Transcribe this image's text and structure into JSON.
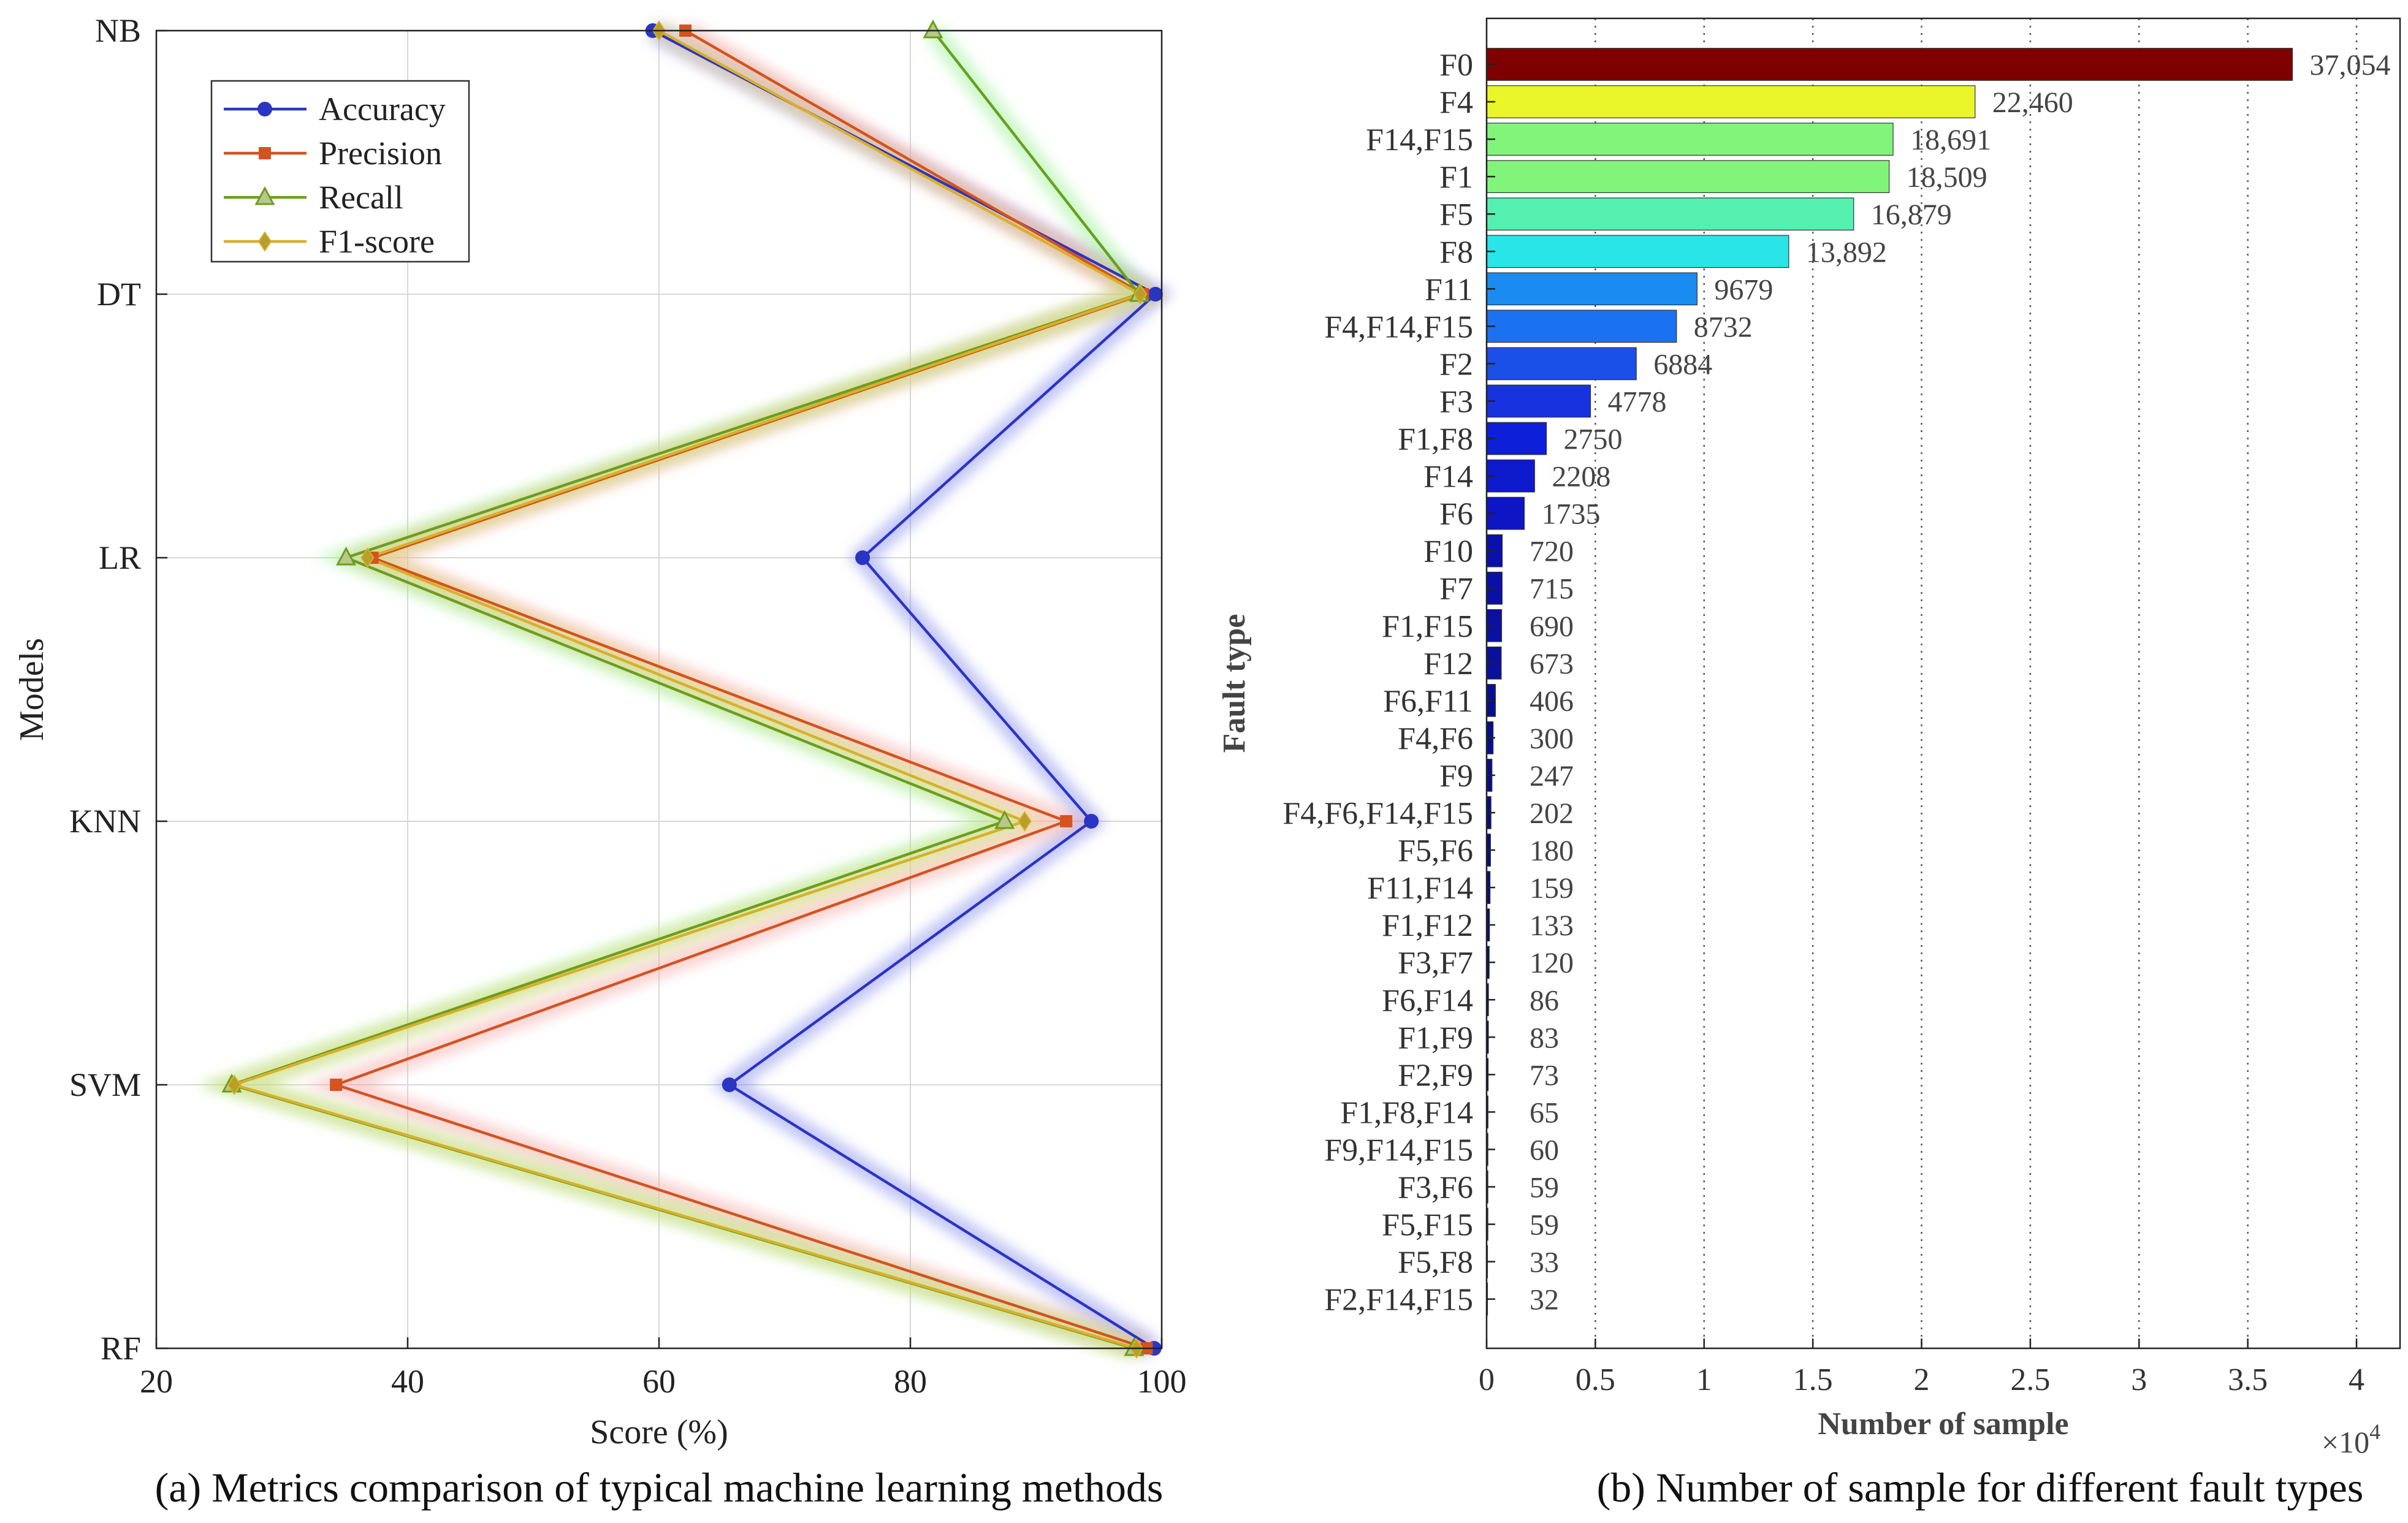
{
  "chart_data": [
    {
      "type": "line",
      "orientation": "horizontal",
      "title": "",
      "caption": "(a) Metrics comparison of typical machine learning methods",
      "xlabel": "Score (%)",
      "ylabel": "Models",
      "xlim": [
        20,
        100
      ],
      "xticks": [
        20,
        40,
        60,
        80,
        100
      ],
      "categories": [
        "NB",
        "DT",
        "LR",
        "KNN",
        "SVM",
        "RF"
      ],
      "grid": true,
      "legend_position": "top-left",
      "series": [
        {
          "name": "Accuracy",
          "color": "#2a35c4",
          "marker": "circle",
          "values": [
            59.5,
            99.5,
            76.2,
            94.4,
            65.6,
            99.4
          ]
        },
        {
          "name": "Precision",
          "color": "#d4531f",
          "marker": "square",
          "values": [
            62.1,
            98.5,
            37.2,
            92.4,
            34.3,
            98.8
          ]
        },
        {
          "name": "Recall",
          "color": "#6b9e1f",
          "marker": "triangle",
          "values": [
            81.8,
            98.2,
            35.1,
            87.5,
            26.0,
            97.8
          ]
        },
        {
          "name": "F1-score",
          "color": "#d8b02a",
          "marker": "diamond",
          "values": [
            60.0,
            98.3,
            36.8,
            89.1,
            26.2,
            98.0
          ]
        }
      ]
    },
    {
      "type": "bar",
      "orientation": "horizontal",
      "title": "",
      "caption": "(b) Number of sample for different fault types",
      "xlabel": "Number of sample",
      "ylabel": "Fault type",
      "xlim": [
        0,
        42000
      ],
      "xticks": [
        0,
        5000,
        10000,
        15000,
        20000,
        25000,
        30000,
        35000,
        40000
      ],
      "xtick_labels": [
        "0",
        "0.5",
        "1",
        "1.5",
        "2",
        "2.5",
        "3",
        "3.5",
        "4"
      ],
      "x_exponent_label": "×10",
      "x_exponent_power": "4",
      "grid": "vertical dotted",
      "categories": [
        "F0",
        "F4",
        "F14,F15",
        "F1",
        "F5",
        "F8",
        "F11",
        "F4,F14,F15",
        "F2",
        "F3",
        "F1,F8",
        "F14",
        "F6",
        "F10",
        "F7",
        "F1,F15",
        "F12",
        "F6,F11",
        "F4,F6",
        "F9",
        "F4,F6,F14,F15",
        "F5,F6",
        "F11,F14",
        "F1,F12",
        "F3,F7",
        "F6,F14",
        "F1,F9",
        "F2,F9",
        "F1,F8,F14",
        "F9,F14,F15",
        "F3,F6",
        "F5,F15",
        "F5,F8",
        "F2,F14,F15"
      ],
      "values": [
        37054,
        22460,
        18691,
        18509,
        16879,
        13892,
        9679,
        8732,
        6884,
        4778,
        2750,
        2208,
        1735,
        720,
        715,
        690,
        673,
        406,
        300,
        247,
        202,
        180,
        159,
        133,
        120,
        86,
        83,
        73,
        65,
        60,
        59,
        59,
        33,
        32
      ],
      "value_labels": [
        "37,054",
        "22,460",
        "18,691",
        "18,509",
        "16,879",
        "13,892",
        "9679",
        "8732",
        "6884",
        "4778",
        "2750",
        "2208",
        "1735",
        "720",
        "715",
        "690",
        "673",
        "406",
        "300",
        "247",
        "202",
        "180",
        "159",
        "133",
        "120",
        "86",
        "83",
        "73",
        "65",
        "60",
        "59",
        "59",
        "33",
        "32"
      ],
      "colors": [
        "#7f0000",
        "#eaf52a",
        "#80f57a",
        "#80f57a",
        "#55f0b0",
        "#29e5e8",
        "#1a8bf0",
        "#1a72f0",
        "#1a50e8",
        "#1733e0",
        "#0d1fd8",
        "#0d1acc",
        "#0d15c4",
        "#0a10aa",
        "#0a10a6",
        "#0a10a0",
        "#0a109c",
        "#080e90",
        "#080e8c",
        "#080e88",
        "#070d84",
        "#070d80",
        "#070c7c",
        "#070c78",
        "#060b74",
        "#060b70",
        "#060a6c",
        "#060a68",
        "#050964",
        "#050960",
        "#05095c",
        "#050858",
        "#040854",
        "#040850"
      ]
    }
  ]
}
